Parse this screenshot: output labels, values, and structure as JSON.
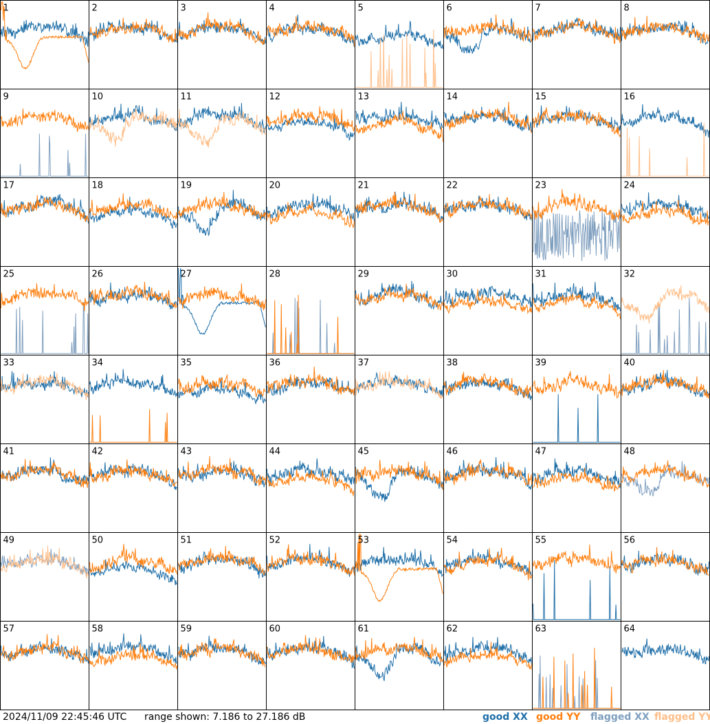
{
  "footer": {
    "timestamp": "2024/11/09 22:45:46 UTC",
    "range_text": "range shown: 7.186 to 27.186 dB"
  },
  "legend": [
    {
      "label": "good XX",
      "color": "#1f6fa8"
    },
    {
      "label": "good YY",
      "color": "#ff7f0e"
    },
    {
      "label": "flagged XX",
      "color": "#7f9fbf"
    },
    {
      "label": "flagged YY",
      "color": "#ffbf8a"
    }
  ],
  "colors": {
    "good_xx": "#1f6fa8",
    "good_yy": "#ff7f0e",
    "flagged_xx": "#7f9fbf",
    "flagged_yy": "#ffbf8a"
  },
  "chart_data": {
    "type": "line",
    "ylim": [
      7.186,
      27.186
    ],
    "units": "dB",
    "grid_rows": 8,
    "grid_cols": 8,
    "panels": [
      {
        "id": "1",
        "xx": "good",
        "yy": "good",
        "xx_shape": "normal",
        "yy_shape": "dip_smooth"
      },
      {
        "id": "2",
        "xx": "good",
        "yy": "good",
        "xx_shape": "normal",
        "yy_shape": "normal"
      },
      {
        "id": "3",
        "xx": "good",
        "yy": "good",
        "xx_shape": "normal",
        "yy_shape": "normal"
      },
      {
        "id": "4",
        "xx": "good",
        "yy": "good",
        "xx_shape": "normal",
        "yy_shape": "normal"
      },
      {
        "id": "5",
        "xx": "good",
        "yy": "flagged",
        "xx_shape": "low",
        "yy_shape": "spikes"
      },
      {
        "id": "6",
        "xx": "good",
        "yy": "good",
        "xx_shape": "dip",
        "yy_shape": "normal"
      },
      {
        "id": "7",
        "xx": "good",
        "yy": "good",
        "xx_shape": "normal",
        "yy_shape": "normal"
      },
      {
        "id": "8",
        "xx": "good",
        "yy": "good",
        "xx_shape": "normal",
        "yy_shape": "normal"
      },
      {
        "id": "9",
        "xx": "flagged",
        "yy": "good",
        "xx_shape": "spikes",
        "yy_shape": "normal"
      },
      {
        "id": "10",
        "xx": "good",
        "yy": "flagged",
        "xx_shape": "normal",
        "yy_shape": "dip"
      },
      {
        "id": "11",
        "xx": "good",
        "yy": "flagged",
        "xx_shape": "normal",
        "yy_shape": "dip"
      },
      {
        "id": "12",
        "xx": "good",
        "yy": "good",
        "xx_shape": "low",
        "yy_shape": "normal"
      },
      {
        "id": "13",
        "xx": "good",
        "yy": "good",
        "xx_shape": "normal",
        "yy_shape": "low"
      },
      {
        "id": "14",
        "xx": "good",
        "yy": "good",
        "xx_shape": "normal",
        "yy_shape": "normal"
      },
      {
        "id": "15",
        "xx": "good",
        "yy": "good",
        "xx_shape": "normal",
        "yy_shape": "normal"
      },
      {
        "id": "16",
        "xx": "good",
        "yy": "flagged",
        "xx_shape": "normal",
        "yy_shape": "spikes"
      },
      {
        "id": "17",
        "xx": "good",
        "yy": "good",
        "xx_shape": "normal",
        "yy_shape": "normal"
      },
      {
        "id": "18",
        "xx": "good",
        "yy": "good",
        "xx_shape": "low",
        "yy_shape": "normal"
      },
      {
        "id": "19",
        "xx": "good",
        "yy": "good",
        "xx_shape": "dip",
        "yy_shape": "normal"
      },
      {
        "id": "20",
        "xx": "good",
        "yy": "good",
        "xx_shape": "normal",
        "yy_shape": "low"
      },
      {
        "id": "21",
        "xx": "good",
        "yy": "good",
        "xx_shape": "normal",
        "yy_shape": "normal"
      },
      {
        "id": "22",
        "xx": "good",
        "yy": "good",
        "xx_shape": "normal",
        "yy_shape": "normal"
      },
      {
        "id": "23",
        "xx": "flagged",
        "yy": "good",
        "xx_shape": "chaotic",
        "yy_shape": "normal"
      },
      {
        "id": "24",
        "xx": "good",
        "yy": "good",
        "xx_shape": "normal",
        "yy_shape": "low"
      },
      {
        "id": "25",
        "xx": "flagged",
        "yy": "good",
        "xx_shape": "spikes",
        "yy_shape": "normal"
      },
      {
        "id": "26",
        "xx": "good",
        "yy": "good",
        "xx_shape": "normal",
        "yy_shape": "normal"
      },
      {
        "id": "27",
        "xx": "good",
        "yy": "good",
        "xx_shape": "dip_smooth",
        "yy_shape": "normal"
      },
      {
        "id": "28",
        "xx": "flagged",
        "yy": "good",
        "xx_shape": "spikes",
        "yy_shape": "spikes"
      },
      {
        "id": "29",
        "xx": "good",
        "yy": "good",
        "xx_shape": "normal",
        "yy_shape": "normal"
      },
      {
        "id": "30",
        "xx": "good",
        "yy": "good",
        "xx_shape": "normal",
        "yy_shape": "low"
      },
      {
        "id": "31",
        "xx": "good",
        "yy": "good",
        "xx_shape": "normal",
        "yy_shape": "low"
      },
      {
        "id": "32",
        "xx": "flagged",
        "yy": "flagged",
        "xx_shape": "spikes",
        "yy_shape": "dip"
      },
      {
        "id": "33",
        "xx": "good",
        "yy": "flagged",
        "xx_shape": "normal",
        "yy_shape": "normal"
      },
      {
        "id": "34",
        "xx": "good",
        "yy": "good",
        "xx_shape": "normal",
        "yy_shape": "spikes"
      },
      {
        "id": "35",
        "xx": "good",
        "yy": "good",
        "xx_shape": "low",
        "yy_shape": "normal"
      },
      {
        "id": "36",
        "xx": "good",
        "yy": "good",
        "xx_shape": "normal",
        "yy_shape": "normal"
      },
      {
        "id": "37",
        "xx": "good",
        "yy": "flagged",
        "xx_shape": "normal",
        "yy_shape": "normal"
      },
      {
        "id": "38",
        "xx": "good",
        "yy": "good",
        "xx_shape": "normal",
        "yy_shape": "normal"
      },
      {
        "id": "39",
        "xx": "good",
        "yy": "good",
        "xx_shape": "spikes",
        "yy_shape": "normal"
      },
      {
        "id": "40",
        "xx": "good",
        "yy": "good",
        "xx_shape": "normal",
        "yy_shape": "normal"
      },
      {
        "id": "41",
        "xx": "good",
        "yy": "good",
        "xx_shape": "normal",
        "yy_shape": "normal"
      },
      {
        "id": "42",
        "xx": "good",
        "yy": "good",
        "xx_shape": "normal",
        "yy_shape": "normal"
      },
      {
        "id": "43",
        "xx": "good",
        "yy": "good",
        "xx_shape": "normal",
        "yy_shape": "normal"
      },
      {
        "id": "44",
        "xx": "good",
        "yy": "good",
        "xx_shape": "normal",
        "yy_shape": "low"
      },
      {
        "id": "45",
        "xx": "good",
        "yy": "good",
        "xx_shape": "dip",
        "yy_shape": "normal"
      },
      {
        "id": "46",
        "xx": "good",
        "yy": "good",
        "xx_shape": "normal",
        "yy_shape": "normal"
      },
      {
        "id": "47",
        "xx": "good",
        "yy": "good",
        "xx_shape": "normal",
        "yy_shape": "low"
      },
      {
        "id": "48",
        "xx": "flagged",
        "yy": "good",
        "xx_shape": "dip",
        "yy_shape": "normal"
      },
      {
        "id": "49",
        "xx": "flagged",
        "yy": "flagged",
        "xx_shape": "normal",
        "yy_shape": "normal"
      },
      {
        "id": "50",
        "xx": "good",
        "yy": "good",
        "xx_shape": "low",
        "yy_shape": "normal"
      },
      {
        "id": "51",
        "xx": "good",
        "yy": "good",
        "xx_shape": "normal",
        "yy_shape": "normal"
      },
      {
        "id": "52",
        "xx": "good",
        "yy": "good",
        "xx_shape": "normal",
        "yy_shape": "normal"
      },
      {
        "id": "53",
        "xx": "good",
        "yy": "good",
        "xx_shape": "normal",
        "yy_shape": "dip_smooth"
      },
      {
        "id": "54",
        "xx": "good",
        "yy": "good",
        "xx_shape": "normal",
        "yy_shape": "normal"
      },
      {
        "id": "55",
        "xx": "good",
        "yy": "good",
        "xx_shape": "spikes",
        "yy_shape": "normal"
      },
      {
        "id": "56",
        "xx": "good",
        "yy": "good",
        "xx_shape": "normal",
        "yy_shape": "normal"
      },
      {
        "id": "57",
        "xx": "good",
        "yy": "good",
        "xx_shape": "normal",
        "yy_shape": "normal"
      },
      {
        "id": "58",
        "xx": "good",
        "yy": "good",
        "xx_shape": "normal",
        "yy_shape": "low"
      },
      {
        "id": "59",
        "xx": "good",
        "yy": "good",
        "xx_shape": "normal",
        "yy_shape": "normal"
      },
      {
        "id": "60",
        "xx": "good",
        "yy": "good",
        "xx_shape": "normal",
        "yy_shape": "normal"
      },
      {
        "id": "61",
        "xx": "good",
        "yy": "good",
        "xx_shape": "dip",
        "yy_shape": "normal"
      },
      {
        "id": "62",
        "xx": "good",
        "yy": "good",
        "xx_shape": "normal",
        "yy_shape": "low"
      },
      {
        "id": "63",
        "xx": "flagged",
        "yy": "good",
        "xx_shape": "spikes",
        "yy_shape": "spikes"
      },
      {
        "id": "64",
        "xx": "good",
        "yy": "good",
        "xx_shape": "normal",
        "yy_shape": "none"
      }
    ]
  }
}
